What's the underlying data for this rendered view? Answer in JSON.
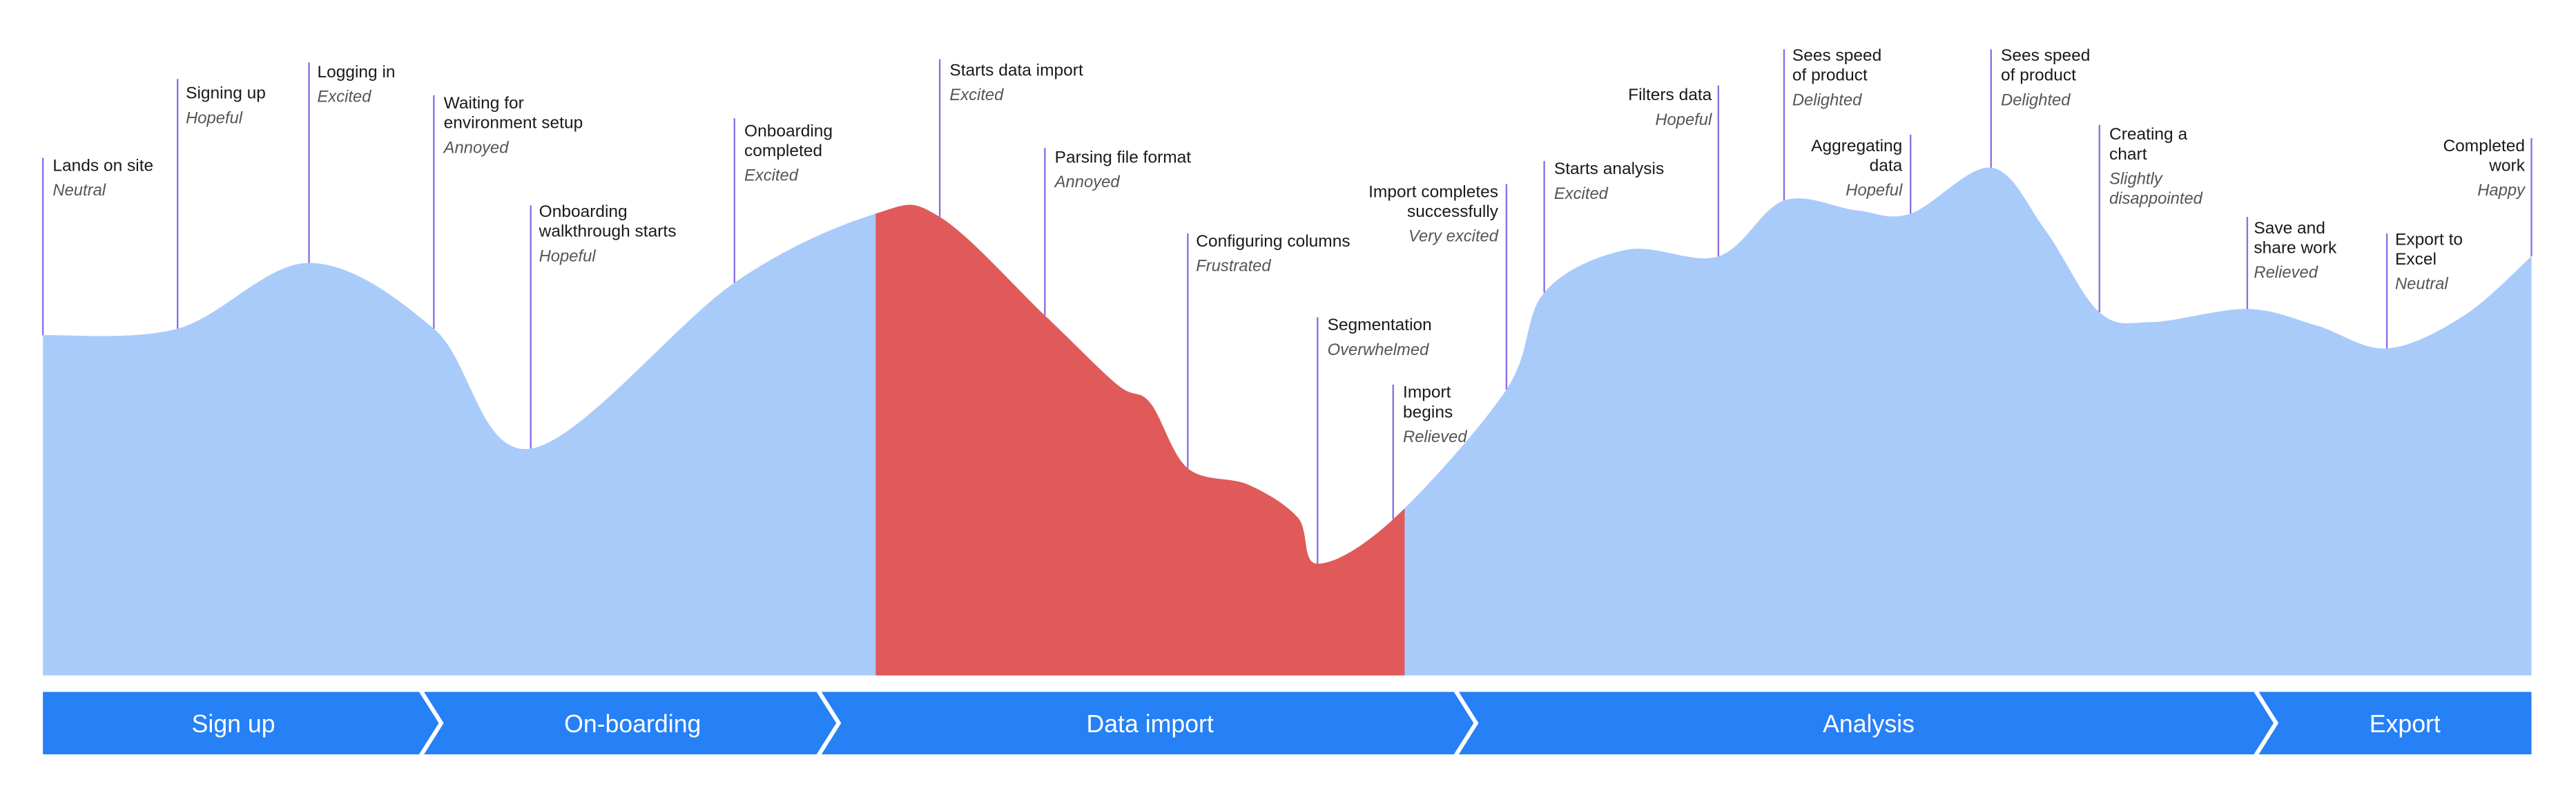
{
  "events": [
    {
      "title": [
        "Lands on site"
      ],
      "emotion": "Neutral"
    },
    {
      "title": [
        "Signing up"
      ],
      "emotion": "Hopeful"
    },
    {
      "title": [
        "Logging in"
      ],
      "emotion": "Excited"
    },
    {
      "title": [
        "Waiting for",
        "environment setup"
      ],
      "emotion": "Annoyed"
    },
    {
      "title": [
        "Onboarding",
        "walkthrough starts"
      ],
      "emotion": "Hopeful"
    },
    {
      "title": [
        "Onboarding",
        "completed"
      ],
      "emotion": "Excited"
    },
    {
      "title": [
        "Starts data import"
      ],
      "emotion": "Excited"
    },
    {
      "title": [
        "Parsing file format"
      ],
      "emotion": "Annoyed"
    },
    {
      "title": [
        "Configuring columns"
      ],
      "emotion": "Frustrated"
    },
    {
      "title": [
        "Segmentation"
      ],
      "emotion": "Overwhelmed"
    },
    {
      "title": [
        "Import",
        "begins"
      ],
      "emotion": "Relieved"
    },
    {
      "title": [
        "Import completes",
        "successfully"
      ],
      "emotion": "Very excited"
    },
    {
      "title": [
        "Starts analysis"
      ],
      "emotion": "Excited"
    },
    {
      "title": [
        "Filters data"
      ],
      "emotion": "Hopeful"
    },
    {
      "title": [
        "Sees speed",
        "of product"
      ],
      "emotion": "Delighted"
    },
    {
      "title": [
        "Aggregating",
        "data"
      ],
      "emotion": "Hopeful"
    },
    {
      "title": [
        "Sees speed",
        "of product"
      ],
      "emotion": "Delighted"
    },
    {
      "title": [
        "Creating a",
        "chart"
      ],
      "emotion": [
        "Slightly",
        "disappointed"
      ]
    },
    {
      "title": [
        "Save and",
        "share work"
      ],
      "emotion": "Relieved"
    },
    {
      "title": [
        "Export to",
        "Excel"
      ],
      "emotion": "Neutral"
    },
    {
      "title": [
        "Completed",
        "work"
      ],
      "emotion": "Happy"
    }
  ],
  "phases": [
    "Sign up",
    "On-boarding",
    "Data import",
    "Analysis",
    "Export"
  ]
}
